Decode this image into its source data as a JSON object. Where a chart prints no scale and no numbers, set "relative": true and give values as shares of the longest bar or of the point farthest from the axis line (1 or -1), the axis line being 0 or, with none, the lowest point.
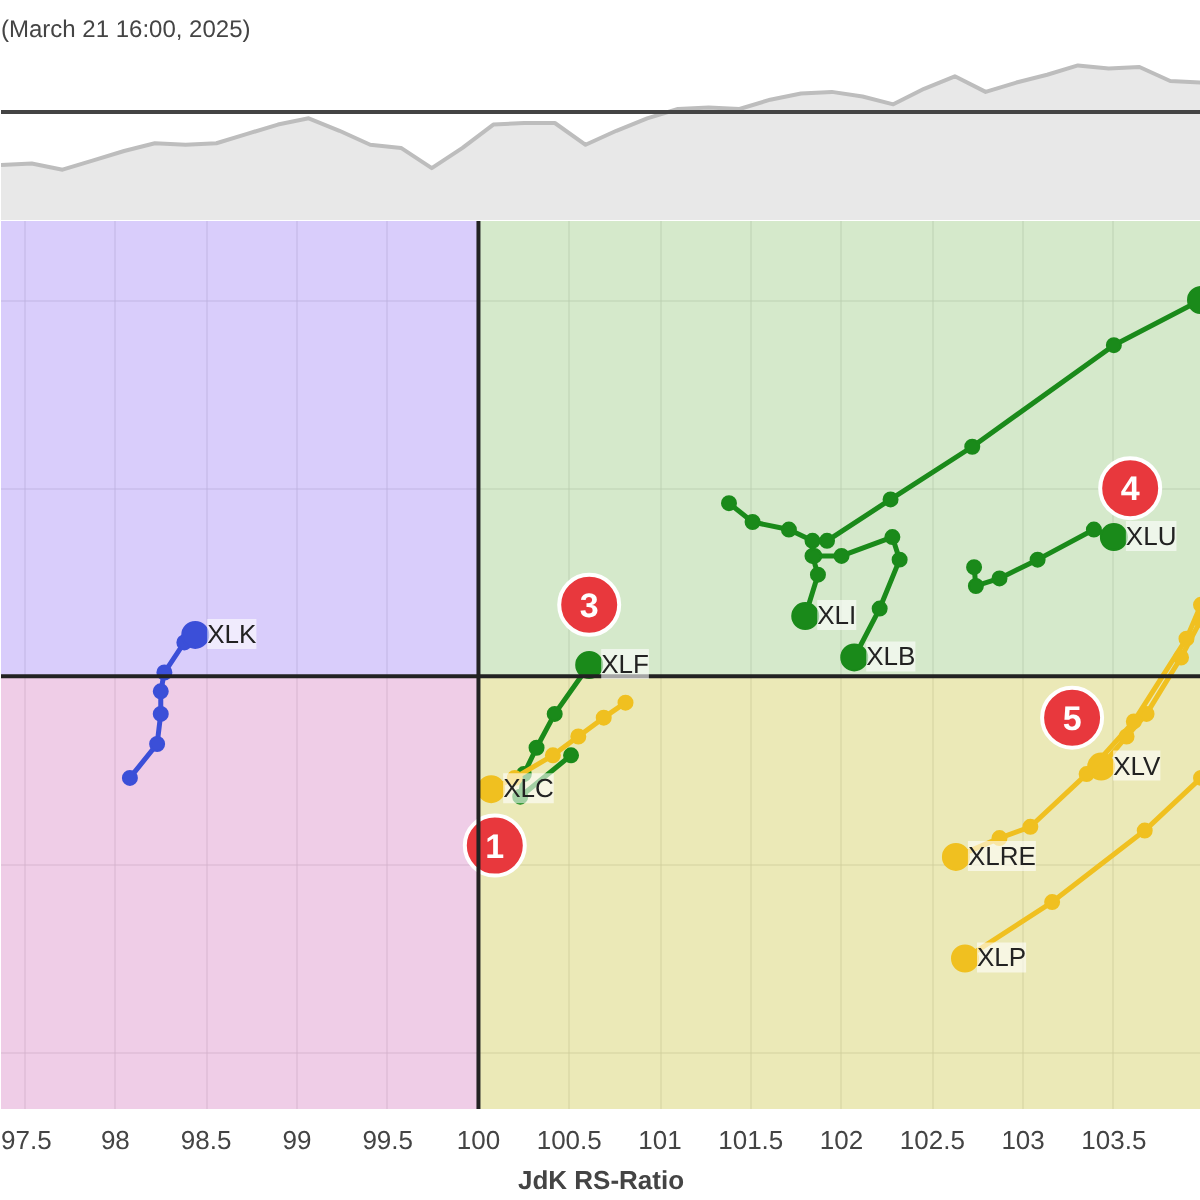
{
  "chart_data": [
    {
      "type": "area",
      "title": "(March 21 16:00, 2025)",
      "relative": true,
      "color": "#e8e8e8",
      "categories": [
        null,
        null,
        null,
        null,
        null,
        null,
        null,
        null,
        null,
        null,
        null,
        null,
        null,
        null,
        null,
        null,
        null,
        null,
        null,
        null,
        null,
        null,
        null,
        null,
        null,
        null,
        null,
        null,
        null,
        null,
        null,
        null,
        null,
        null,
        null,
        null,
        null,
        null,
        null,
        null
      ],
      "values": [
        0.36,
        0.37,
        0.33,
        0.39,
        0.45,
        0.5,
        0.49,
        0.5,
        0.56,
        0.62,
        0.66,
        0.58,
        0.49,
        0.47,
        0.34,
        0.47,
        0.62,
        0.63,
        0.63,
        0.49,
        0.58,
        0.66,
        0.72,
        0.73,
        0.72,
        0.78,
        0.82,
        0.83,
        0.8,
        0.75,
        0.85,
        0.93,
        0.83,
        0.89,
        0.94,
        1.0,
        0.98,
        0.99,
        0.9,
        0.89
      ],
      "ref_lines": [
        {
          "axis": "y",
          "value": 0.7,
          "color": "#444444"
        }
      ],
      "tick_labels": false,
      "grid": false
    },
    {
      "type": "line",
      "xlabel": "JdK RS-Ratio",
      "relative": true,
      "marker": "circle",
      "grid": true,
      "xlim": [
        97.37,
        103.98
      ],
      "xticks": [
        97.5,
        98,
        98.5,
        99,
        99.5,
        100,
        100.5,
        101,
        101.5,
        102,
        102.5,
        103,
        103.5
      ],
      "tick_labels": "x",
      "ref_lines": [
        {
          "axis": "x",
          "value": 100,
          "color": "#222222"
        },
        {
          "axis": "y",
          "value": 0,
          "color": "#222222"
        }
      ],
      "bands": [
        {
          "axis": "y",
          "from": 0,
          "to": 1.3,
          "color": "#a8c8f0"
        },
        {
          "axis": "y",
          "from": -1.3,
          "to": 0,
          "color": "#ffc8a0"
        },
        {
          "axis": "x",
          "from": 97.37,
          "to": 100,
          "color": "#e0b8ff"
        },
        {
          "axis": "x",
          "from": 100,
          "to": 103.98,
          "color": "#d8f0a0"
        }
      ],
      "series": [
        {
          "name": "XLK",
          "color": "#3b4fd8",
          "x": [
            98.08,
            98.23,
            98.25,
            98.25,
            98.27,
            98.38,
            98.44
          ],
          "values": [
            -0.27,
            -0.18,
            -0.1,
            -0.04,
            0.01,
            0.09,
            0.11
          ]
        },
        {
          "name": "XLF",
          "color": "#1a8a1a",
          "x": [
            100.51,
            100.23,
            100.25,
            100.32,
            100.42,
            100.61
          ],
          "values": [
            -0.21,
            -0.32,
            -0.26,
            -0.19,
            -0.1,
            0.03
          ]
        },
        {
          "name": "XLC",
          "color": "#f0c020",
          "x": [
            100.81,
            100.69,
            100.55,
            100.41,
            100.2,
            100.07
          ],
          "values": [
            -0.07,
            -0.11,
            -0.16,
            -0.21,
            -0.27,
            -0.3
          ]
        },
        {
          "name": "XLI",
          "color": "#1a8a1a",
          "x": [
            101.38,
            101.51,
            101.71,
            101.84,
            101.84,
            101.87,
            101.8
          ],
          "values": [
            0.46,
            0.41,
            0.39,
            0.36,
            0.32,
            0.27,
            0.16
          ]
        },
        {
          "name": "XLB",
          "color": "#1a8a1a",
          "x": [
            101.85,
            102.0,
            102.28,
            102.32,
            102.21,
            102.07
          ],
          "values": [
            0.32,
            0.32,
            0.37,
            0.31,
            0.18,
            0.05
          ]
        },
        {
          "color": "#1a8a1a",
          "x": [
            101.92,
            102.27,
            102.72,
            103.5,
            103.98
          ],
          "values": [
            0.36,
            0.47,
            0.61,
            0.88,
            1.0
          ]
        },
        {
          "name": "XLU",
          "color": "#1a8a1a",
          "x": [
            102.73,
            102.74,
            102.87,
            103.08,
            103.39,
            103.5
          ],
          "values": [
            0.29,
            0.24,
            0.26,
            0.31,
            0.39,
            0.37
          ]
        },
        {
          "name": "XLV",
          "color": "#f0c020",
          "x": [
            103.98,
            103.87,
            103.68,
            103.57,
            103.43
          ],
          "values": [
            0.15,
            0.05,
            -0.1,
            -0.16,
            -0.24
          ]
        },
        {
          "name": "XLRE",
          "color": "#f0c020",
          "x": [
            103.98,
            103.9,
            103.61,
            103.35,
            103.04,
            102.87,
            102.63
          ],
          "values": [
            0.19,
            0.1,
            -0.12,
            -0.26,
            -0.4,
            -0.43,
            -0.48
          ]
        },
        {
          "name": "XLP",
          "color": "#f0c020",
          "x": [
            103.98,
            103.67,
            103.16,
            102.68
          ],
          "values": [
            -0.27,
            -0.41,
            -0.6,
            -0.75
          ]
        }
      ],
      "annotations": [
        {
          "text": "1",
          "x": 100.09,
          "y": -0.45
        },
        {
          "text": "3",
          "x": 100.61,
          "y": 0.19
        },
        {
          "text": "4",
          "x": 103.59,
          "y": 0.5
        },
        {
          "text": "5",
          "x": 103.27,
          "y": -0.11
        }
      ]
    }
  ]
}
